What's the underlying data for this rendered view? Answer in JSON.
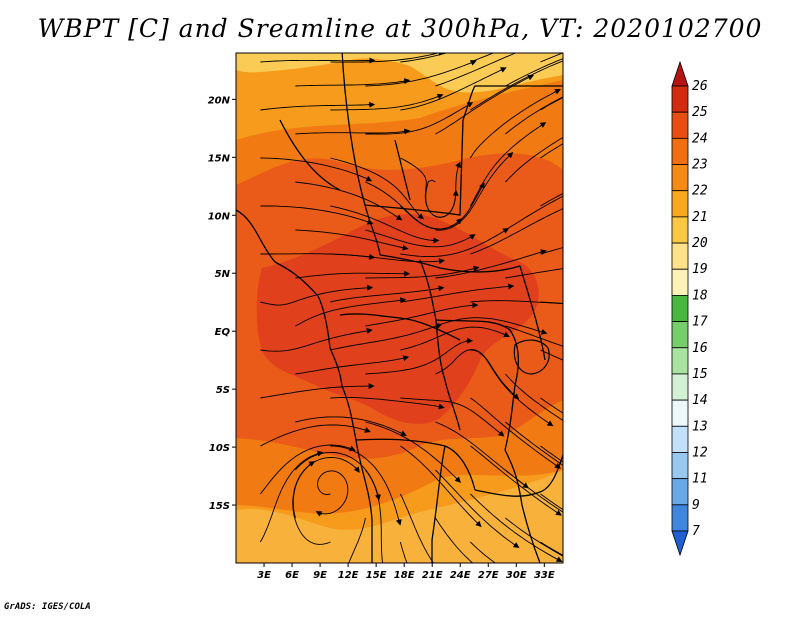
{
  "title": "WBPT [C] and Sreamline at 300hPa, VT: 2020102700",
  "footer": "GrADS: IGES/COLA",
  "map": {
    "lon_labels": [
      "3E",
      "6E",
      "9E",
      "12E",
      "15E",
      "18E",
      "21E",
      "24E",
      "27E",
      "30E",
      "33E"
    ],
    "lat_labels": [
      "20N",
      "15N",
      "10N",
      "5N",
      "EQ",
      "5S",
      "10S",
      "15S"
    ],
    "lon_range": [
      0,
      35
    ],
    "lat_range": [
      -20,
      24
    ]
  },
  "colorbar": {
    "labels": [
      "26",
      "25",
      "24",
      "23",
      "22",
      "21",
      "20",
      "19",
      "18",
      "17",
      "16",
      "15",
      "14",
      "13",
      "12",
      "11",
      "9",
      "7"
    ],
    "colors": [
      "#b41414",
      "#d22b10",
      "#e84d12",
      "#f16e13",
      "#f68a17",
      "#f9a91d",
      "#fbc843",
      "#fde28a",
      "#fdf3b8",
      "#48b83e",
      "#76cf6a",
      "#a8e3a0",
      "#d4f1d6",
      "#eef8fb",
      "#c2e0f7",
      "#98c8ef",
      "#6aa9e7",
      "#3f86df",
      "#1f5fd1"
    ]
  },
  "field_colors": {
    "c24": "#e0401c",
    "c23": "#ea5a18",
    "c22": "#f27a12",
    "c21": "#f69b1c",
    "c20": "#f8b13a",
    "c19": "#fbcc55"
  }
}
